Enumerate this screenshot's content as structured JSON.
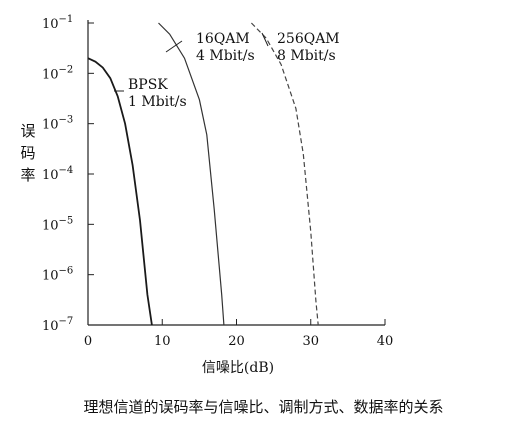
{
  "chart_data": {
    "type": "line",
    "title": "",
    "xlabel": "信噪比(dB)",
    "ylabel": "误码率",
    "xlim": [
      0,
      40
    ],
    "ylim_exp": [
      -7,
      -1
    ],
    "y_scale": "log",
    "x_ticks": [
      "0",
      "10",
      "20",
      "30",
      "40"
    ],
    "y_tick_mantissa": "10",
    "y_tick_exponents": [
      "−1",
      "−2",
      "−3",
      "−4",
      "−5",
      "−6",
      "−7"
    ],
    "grid": false,
    "series": [
      {
        "name": "BPSK",
        "annotation": "1 Mbit/s",
        "style": "solid",
        "points": [
          [
            0,
            0.02
          ],
          [
            1,
            0.017
          ],
          [
            2,
            0.013
          ],
          [
            3,
            0.008
          ],
          [
            4,
            0.0035
          ],
          [
            5,
            0.001
          ],
          [
            6,
            0.00015
          ],
          [
            7,
            1.2e-05
          ],
          [
            8,
            4e-07
          ],
          [
            8.6,
            1e-07
          ]
        ]
      },
      {
        "name": "16QAM",
        "annotation": "4 Mbit/s",
        "style": "solid",
        "points": [
          [
            9.5,
            0.1
          ],
          [
            11,
            0.06
          ],
          [
            13,
            0.02
          ],
          [
            15,
            0.003
          ],
          [
            16,
            0.0006
          ],
          [
            17,
            2e-05
          ],
          [
            18,
            4e-07
          ],
          [
            18.3,
            1e-07
          ]
        ]
      },
      {
        "name": "256QAM",
        "annotation": "8 Mbit/s",
        "style": "dashed",
        "points": [
          [
            22,
            0.1
          ],
          [
            24,
            0.05
          ],
          [
            26,
            0.015
          ],
          [
            28,
            0.002
          ],
          [
            29,
            0.00025
          ],
          [
            30,
            7e-06
          ],
          [
            30.7,
            3e-07
          ],
          [
            31,
            1e-07
          ]
        ]
      }
    ]
  },
  "caption": "理想信道的误码率与信噪比、调制方式、数据率的关系"
}
